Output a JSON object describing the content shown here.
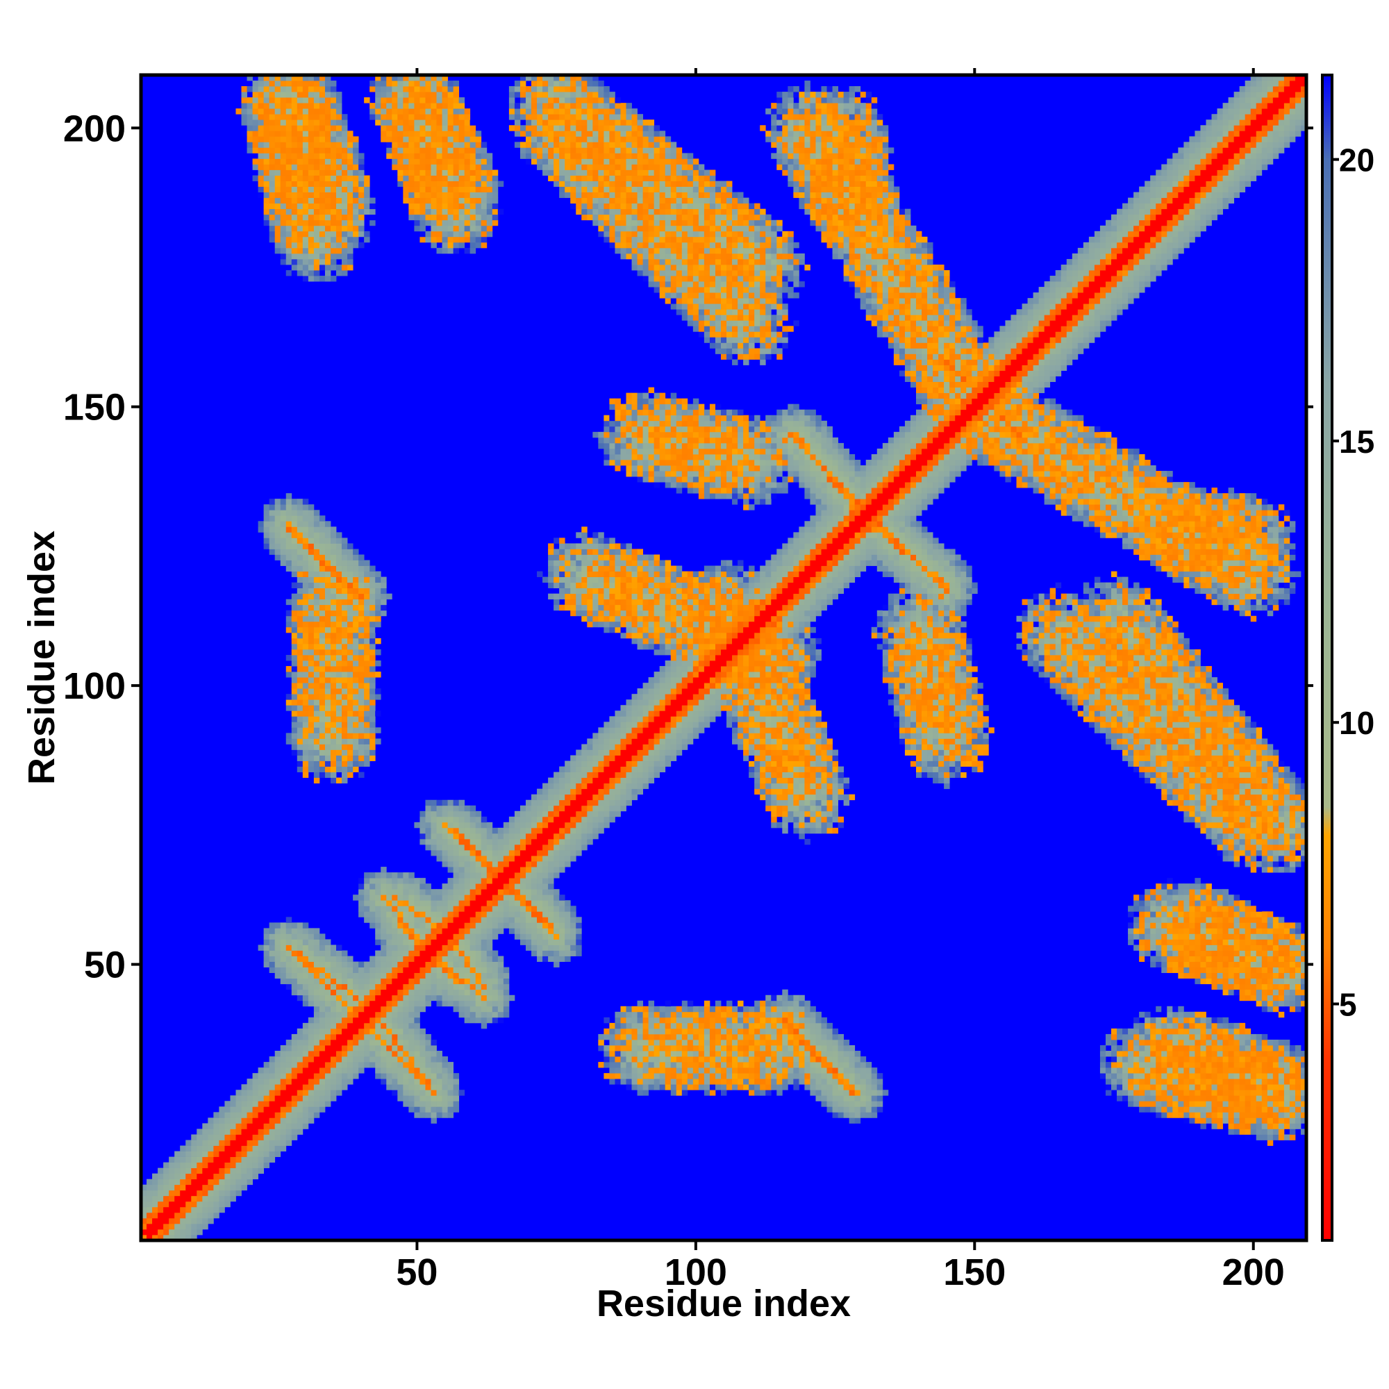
{
  "chart_data": {
    "type": "heatmap",
    "title": "",
    "xlabel": "Residue index",
    "ylabel": "Residue index",
    "xlim": [
      1,
      209
    ],
    "ylim": [
      1,
      209
    ],
    "x_ticks": [
      50,
      100,
      150,
      200
    ],
    "y_ticks": [
      50,
      100,
      150,
      200
    ],
    "colorbar": {
      "range": [
        0.8,
        21.5
      ],
      "ticks": [
        5,
        10,
        15,
        20
      ],
      "stops": [
        {
          "value": 0.8,
          "color": "#ff0000"
        },
        {
          "value": 4.0,
          "color": "#ff3300"
        },
        {
          "value": 6.0,
          "color": "#ff8000"
        },
        {
          "value": 8.0,
          "color": "#ffa500"
        },
        {
          "value": 8.5,
          "color": "#a9b98a"
        },
        {
          "value": 12.0,
          "color": "#9bb595"
        },
        {
          "value": 16.0,
          "color": "#8aa6a6"
        },
        {
          "value": 20.0,
          "color": "#4a6fb5"
        },
        {
          "value": 21.5,
          "color": "#0000ff"
        }
      ]
    },
    "background_value": 21.5,
    "diagonal": {
      "core": 0.8,
      "width": 4
    },
    "features": [
      {
        "from": [
          2,
          2
        ],
        "to": [
          209,
          209
        ],
        "kind": "diagonal-band",
        "width": 7
      },
      {
        "from": [
          27,
          129
        ],
        "to": [
          38,
          117
        ],
        "kind": "contact-strand"
      },
      {
        "from": [
          27,
          53
        ],
        "to": [
          43,
          41
        ],
        "kind": "contact-strand"
      },
      {
        "from": [
          44,
          62
        ],
        "to": [
          57,
          47
        ],
        "kind": "contact-strand"
      },
      {
        "from": [
          40,
          40
        ],
        "to": [
          53,
          27
        ],
        "kind": "contact-strand"
      },
      {
        "from": [
          56,
          55
        ],
        "to": [
          62,
          46
        ],
        "kind": "contact-strand"
      },
      {
        "from": [
          57,
          74
        ],
        "to": [
          75,
          55
        ],
        "kind": "contact-strand"
      },
      {
        "from": [
          118,
          145
        ],
        "to": [
          130,
          130
        ],
        "kind": "contact-strand"
      },
      {
        "from": [
          132,
          130
        ],
        "to": [
          145,
          117
        ],
        "kind": "contact-strand"
      },
      {
        "from": [
          116,
          40
        ],
        "to": [
          128,
          27
        ],
        "kind": "contact-strand"
      },
      {
        "from": [
          145,
          158
        ],
        "to": [
          160,
          143
        ],
        "kind": "contact-strand"
      },
      {
        "from": [
          186,
          128
        ],
        "to": [
          200,
          126
        ],
        "kind": "contact-patch"
      },
      {
        "from": [
          175,
          112
        ],
        "to": [
          205,
          74
        ],
        "kind": "contact-patch"
      },
      {
        "from": [
          185,
          57
        ],
        "to": [
          205,
          50
        ],
        "kind": "contact-patch"
      },
      {
        "from": [
          180,
          32
        ],
        "to": [
          205,
          26
        ],
        "kind": "contact-patch"
      },
      {
        "from": [
          75,
          200
        ],
        "to": [
          110,
          165
        ],
        "kind": "contact-patch"
      },
      {
        "from": [
          28,
          205
        ],
        "to": [
          35,
          185
        ],
        "kind": "contact-patch"
      },
      {
        "from": [
          49,
          205
        ],
        "to": [
          57,
          190
        ],
        "kind": "contact-patch"
      },
      {
        "from": [
          90,
          145
        ],
        "to": [
          110,
          140
        ],
        "kind": "contact-patch"
      },
      {
        "from": [
          90,
          35
        ],
        "to": [
          115,
          35
        ],
        "kind": "contact-patch"
      },
      {
        "from": [
          80,
          120
        ],
        "to": [
          115,
          105
        ],
        "kind": "contact-patch"
      },
      {
        "from": [
          120,
          200
        ],
        "to": [
          150,
          150
        ],
        "kind": "contact-patch"
      }
    ]
  }
}
